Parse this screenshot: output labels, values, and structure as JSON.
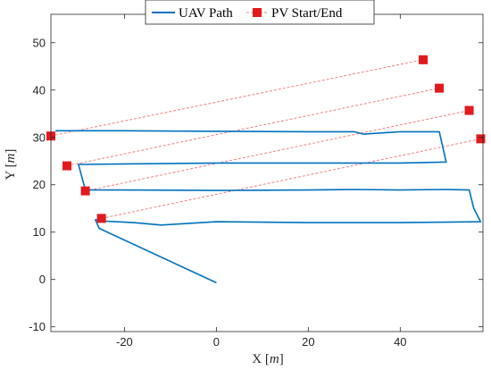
{
  "chart_data": {
    "type": "line",
    "xlabel": "X [m]",
    "ylabel": "Y [m]",
    "xlim": [
      -36,
      58
    ],
    "ylim": [
      -11,
      56
    ],
    "xticks": [
      -20,
      0,
      20,
      40
    ],
    "yticks": [
      -10,
      0,
      10,
      20,
      30,
      40,
      50
    ],
    "grid": false,
    "legend_placement": "top-center",
    "colors": {
      "path": "#0072BD",
      "marker": "#E31A1C",
      "pv_line": "#F07F7F",
      "axes": "#262626"
    },
    "series": [
      {
        "name": "UAV Path",
        "style": "solid-line",
        "x": [
          0,
          -25.5,
          -26.3,
          -25,
          -24,
          -18,
          -12,
          0,
          20,
          40,
          57.5,
          56,
          55,
          50,
          40,
          30,
          20,
          0,
          -20,
          -28.5,
          -30,
          -20,
          0,
          20,
          40,
          50,
          48.5,
          40,
          32,
          30,
          20,
          0,
          -20,
          -35
        ],
        "y": [
          -0.7,
          10.8,
          12.6,
          12.8,
          12.3,
          12.0,
          11.5,
          12.2,
          12.0,
          12.0,
          12.2,
          15.0,
          18.9,
          19.0,
          18.9,
          19.0,
          18.9,
          18.8,
          18.9,
          18.9,
          24.3,
          24.4,
          24.6,
          24.6,
          24.6,
          24.8,
          31.2,
          31.2,
          30.7,
          31.2,
          31.2,
          31.3,
          31.4,
          31.4
        ]
      },
      {
        "name": "PV Start/End",
        "style": "square-marker",
        "x": [
          -36,
          -32.5,
          -28.5,
          -25,
          45,
          48.5,
          55,
          57.5
        ],
        "y": [
          30.3,
          24.0,
          18.7,
          12.9,
          46.4,
          40.4,
          35.7,
          29.7
        ]
      }
    ],
    "pv_rows": [
      {
        "start": [
          -36,
          30.3
        ],
        "end": [
          45,
          46.4
        ]
      },
      {
        "start": [
          -32.5,
          24.0
        ],
        "end": [
          48.5,
          40.4
        ]
      },
      {
        "start": [
          -28.5,
          18.7
        ],
        "end": [
          55,
          35.7
        ]
      },
      {
        "start": [
          -25,
          12.9
        ],
        "end": [
          57.5,
          29.7
        ]
      }
    ]
  }
}
